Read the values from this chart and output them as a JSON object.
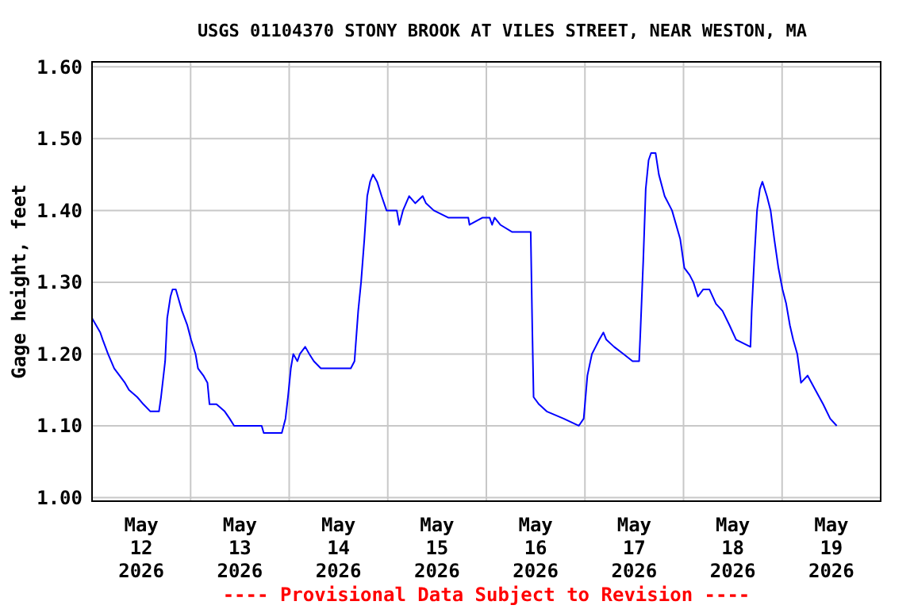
{
  "chart_data": {
    "type": "line",
    "title": "USGS 01104370 STONY BROOK AT VILES STREET, NEAR WESTON, MA",
    "ylabel": "Gage height, feet",
    "annotations": [
      "---- Provisional Data Subject to Revision ----"
    ],
    "xlim": [
      "2026-05-12T00:00",
      "2026-05-20T00:00"
    ],
    "ylim": [
      0.995,
      1.607
    ],
    "xticks": [
      {
        "value": "2026-05-12T12:00",
        "label": "May\n12\n2026"
      },
      {
        "value": "2026-05-13T00:00",
        "label": null
      },
      {
        "value": "2026-05-13T12:00",
        "label": "May\n13\n2026"
      },
      {
        "value": "2026-05-14T00:00",
        "label": null
      },
      {
        "value": "2026-05-14T12:00",
        "label": "May\n14\n2026"
      },
      {
        "value": "2026-05-15T00:00",
        "label": null
      },
      {
        "value": "2026-05-15T12:00",
        "label": "May\n15\n2026"
      },
      {
        "value": "2026-05-16T00:00",
        "label": null
      },
      {
        "value": "2026-05-16T12:00",
        "label": "May\n16\n2026"
      },
      {
        "value": "2026-05-17T00:00",
        "label": null
      },
      {
        "value": "2026-05-17T12:00",
        "label": "May\n17\n2026"
      },
      {
        "value": "2026-05-18T00:00",
        "label": null
      },
      {
        "value": "2026-05-18T12:00",
        "label": "May\n18\n2026"
      },
      {
        "value": "2026-05-19T00:00",
        "label": null
      },
      {
        "value": "2026-05-19T12:00",
        "label": "May\n19\n2026"
      }
    ],
    "yticks": [
      {
        "value": 1.0,
        "label": "1.00"
      },
      {
        "value": 1.1,
        "label": "1.10"
      },
      {
        "value": 1.2,
        "label": "1.20"
      },
      {
        "value": 1.3,
        "label": "1.30"
      },
      {
        "value": 1.4,
        "label": "1.40"
      },
      {
        "value": 1.5,
        "label": "1.50"
      },
      {
        "value": 1.6,
        "label": "1.60"
      }
    ],
    "grid": true,
    "marker": "none",
    "line_style": "solid",
    "series": [
      {
        "color": "#0000ff",
        "x": [
          "2026-05-12T00:00",
          "2026-05-12T02:00",
          "2026-05-12T02:36",
          "2026-05-12T03:54",
          "2026-05-12T05:24",
          "2026-05-12T06:42",
          "2026-05-12T08:00",
          "2026-05-12T09:00",
          "2026-05-12T11:00",
          "2026-05-12T12:30",
          "2026-05-12T14:12",
          "2026-05-12T16:18",
          "2026-05-12T16:48",
          "2026-05-12T17:48",
          "2026-05-12T18:18",
          "2026-05-12T19:06",
          "2026-05-12T19:36",
          "2026-05-12T20:24",
          "2026-05-12T20:54",
          "2026-05-12T21:54",
          "2026-05-12T23:12",
          "2026-05-13T00:06",
          "2026-05-13T01:12",
          "2026-05-13T01:48",
          "2026-05-13T03:06",
          "2026-05-13T04:06",
          "2026-05-13T04:36",
          "2026-05-13T06:18",
          "2026-05-13T08:18",
          "2026-05-13T09:30",
          "2026-05-13T10:36",
          "2026-05-13T17:18",
          "2026-05-13T17:48",
          "2026-05-13T19:12",
          "2026-05-13T22:12",
          "2026-05-13T23:06",
          "2026-05-13T23:42",
          "2026-05-14T00:24",
          "2026-05-14T01:00",
          "2026-05-14T02:00",
          "2026-05-14T02:36",
          "2026-05-14T03:54",
          "2026-05-14T04:54",
          "2026-05-14T06:00",
          "2026-05-14T07:42",
          "2026-05-14T15:00",
          "2026-05-14T15:54",
          "2026-05-14T16:48",
          "2026-05-14T17:30",
          "2026-05-14T18:18",
          "2026-05-14T19:00",
          "2026-05-14T19:42",
          "2026-05-14T20:24",
          "2026-05-14T21:24",
          "2026-05-14T22:30",
          "2026-05-14T23:42",
          "2026-05-15T02:12",
          "2026-05-15T02:48",
          "2026-05-15T03:42",
          "2026-05-15T05:12",
          "2026-05-15T06:42",
          "2026-05-15T08:30",
          "2026-05-15T09:18",
          "2026-05-15T11:12",
          "2026-05-15T14:42",
          "2026-05-15T19:36",
          "2026-05-15T19:54",
          "2026-05-15T23:06",
          "2026-05-16T00:48",
          "2026-05-16T01:24",
          "2026-05-16T02:00",
          "2026-05-16T03:24",
          "2026-05-16T06:18",
          "2026-05-16T10:48",
          "2026-05-16T11:12",
          "2026-05-16T11:30",
          "2026-05-16T12:48",
          "2026-05-16T14:42",
          "2026-05-16T18:48",
          "2026-05-16T22:30",
          "2026-05-16T23:42",
          "2026-05-17T00:36",
          "2026-05-17T01:42",
          "2026-05-17T02:36",
          "2026-05-17T03:30",
          "2026-05-17T04:30",
          "2026-05-17T05:12",
          "2026-05-17T07:06",
          "2026-05-17T09:24",
          "2026-05-17T11:36",
          "2026-05-17T13:12",
          "2026-05-17T13:30",
          "2026-05-17T14:12",
          "2026-05-17T14:48",
          "2026-05-17T15:30",
          "2026-05-17T16:06",
          "2026-05-17T17:12",
          "2026-05-17T18:00",
          "2026-05-17T19:24",
          "2026-05-17T21:12",
          "2026-05-17T23:12",
          "2026-05-18T00:12",
          "2026-05-18T01:30",
          "2026-05-18T02:24",
          "2026-05-18T03:30",
          "2026-05-18T04:48",
          "2026-05-18T06:18",
          "2026-05-18T07:54",
          "2026-05-18T09:30",
          "2026-05-18T11:12",
          "2026-05-18T12:48",
          "2026-05-18T16:18",
          "2026-05-18T16:36",
          "2026-05-18T17:18",
          "2026-05-18T17:54",
          "2026-05-18T18:36",
          "2026-05-18T19:12",
          "2026-05-18T20:18",
          "2026-05-18T21:12",
          "2026-05-18T22:06",
          "2026-05-18T23:06",
          "2026-05-19T00:06",
          "2026-05-19T01:00",
          "2026-05-19T01:54",
          "2026-05-19T02:42",
          "2026-05-19T03:42",
          "2026-05-19T04:36",
          "2026-05-19T06:12",
          "2026-05-19T08:06",
          "2026-05-19T10:00",
          "2026-05-19T11:42",
          "2026-05-19T13:18"
        ],
        "values": [
          1.25,
          1.23,
          1.22,
          1.2,
          1.18,
          1.17,
          1.16,
          1.15,
          1.14,
          1.13,
          1.12,
          1.12,
          1.14,
          1.19,
          1.25,
          1.28,
          1.29,
          1.29,
          1.28,
          1.26,
          1.24,
          1.22,
          1.2,
          1.18,
          1.17,
          1.16,
          1.13,
          1.13,
          1.12,
          1.11,
          1.1,
          1.1,
          1.09,
          1.09,
          1.09,
          1.11,
          1.14,
          1.18,
          1.2,
          1.19,
          1.2,
          1.21,
          1.2,
          1.19,
          1.18,
          1.18,
          1.19,
          1.26,
          1.3,
          1.36,
          1.42,
          1.44,
          1.45,
          1.44,
          1.42,
          1.4,
          1.4,
          1.38,
          1.4,
          1.42,
          1.41,
          1.42,
          1.41,
          1.4,
          1.39,
          1.39,
          1.38,
          1.39,
          1.39,
          1.38,
          1.39,
          1.38,
          1.37,
          1.37,
          1.23,
          1.14,
          1.13,
          1.12,
          1.11,
          1.1,
          1.11,
          1.17,
          1.2,
          1.21,
          1.22,
          1.23,
          1.22,
          1.21,
          1.2,
          1.19,
          1.19,
          1.23,
          1.33,
          1.43,
          1.47,
          1.48,
          1.48,
          1.45,
          1.42,
          1.4,
          1.36,
          1.32,
          1.31,
          1.3,
          1.28,
          1.29,
          1.29,
          1.27,
          1.26,
          1.24,
          1.22,
          1.21,
          1.26,
          1.34,
          1.4,
          1.43,
          1.44,
          1.42,
          1.4,
          1.36,
          1.32,
          1.29,
          1.27,
          1.24,
          1.22,
          1.2,
          1.16,
          1.17,
          1.15,
          1.13,
          1.11,
          1.1
        ]
      }
    ]
  }
}
